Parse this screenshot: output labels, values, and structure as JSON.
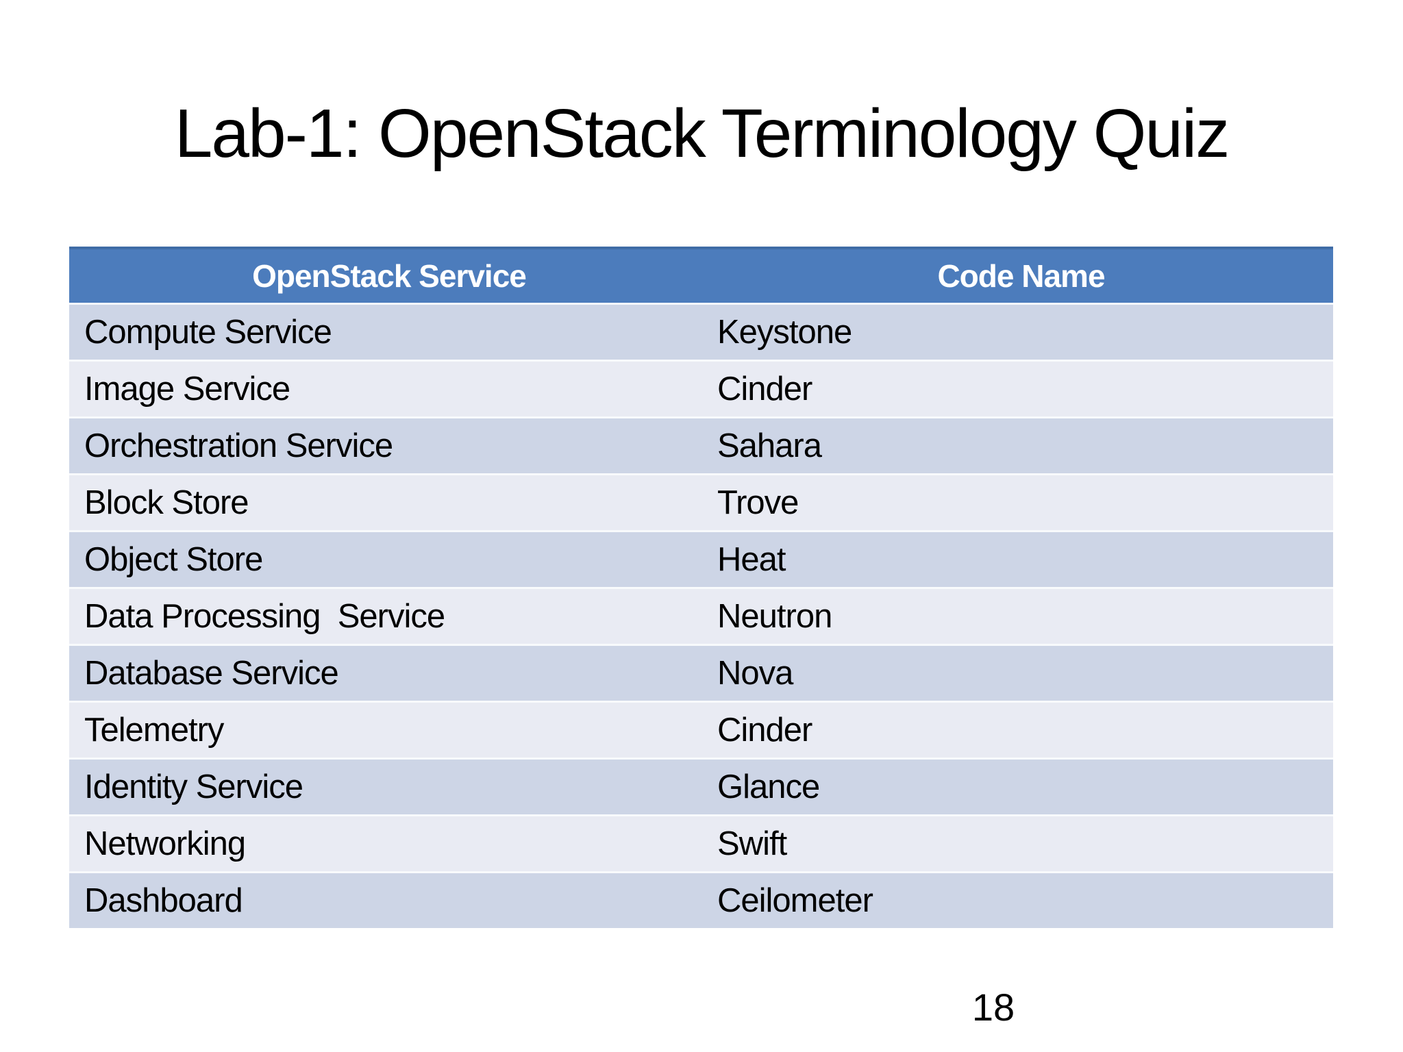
{
  "slide": {
    "title": "Lab-1: OpenStack Terminology Quiz",
    "page_number": "18"
  },
  "table": {
    "headers": [
      "OpenStack Service",
      "Code Name"
    ],
    "rows": [
      {
        "service": "Compute Service",
        "code_name": "Keystone"
      },
      {
        "service": "Image Service",
        "code_name": "Cinder"
      },
      {
        "service": "Orchestration Service",
        "code_name": "Sahara"
      },
      {
        "service": "Block Store",
        "code_name": "Trove"
      },
      {
        "service": "Object Store",
        "code_name": "Heat"
      },
      {
        "service": "Data Processing  Service",
        "code_name": "Neutron"
      },
      {
        "service": "Database Service",
        "code_name": "Nova"
      },
      {
        "service": "Telemetry",
        "code_name": "Cinder"
      },
      {
        "service": "Identity Service",
        "code_name": "Glance"
      },
      {
        "service": "Networking",
        "code_name": "Swift"
      },
      {
        "service": "Dashboard",
        "code_name": "Ceilometer"
      }
    ],
    "colors": {
      "header_bg": "#4C7CBC",
      "header_border_top": "#3F6CA6",
      "header_text": "#FFFFFF",
      "row_band_dark": "#CDD5E6",
      "row_band_light": "#E9EBF3",
      "row_separator": "#F8FAFC",
      "cell_text": "#000000"
    }
  }
}
